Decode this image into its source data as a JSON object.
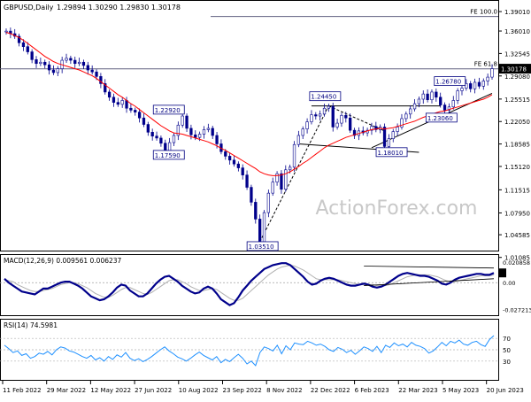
{
  "header": {
    "symbol": "GBPUSD,Daily",
    "quote": "1.29894 1.30290 1.29830 1.30178"
  },
  "watermark": "ActionForex.com",
  "colors": {
    "candle": "#00008b",
    "ma": "#ff0000",
    "macd": "#00008b",
    "signal": "#b0b0b0",
    "rsi": "#1e90ff",
    "fe_lines": "#606080"
  },
  "chart_data": [
    {
      "type": "line",
      "panel": "price",
      "ylim": [
        1.0255,
        1.4025
      ],
      "price_ticks": [
        "1.39010",
        "1.36010",
        "1.32545",
        "1.29080",
        "1.25515",
        "1.22050",
        "1.18585",
        "1.15120",
        "1.11515",
        "1.07950",
        "1.04585",
        "1.01085"
      ],
      "last_price_label": "1.30178",
      "fib_levels": [
        {
          "label": "FE 100.0",
          "price": 1.3825
        },
        {
          "label": "FE 61.8",
          "price": 1.3018
        }
      ],
      "level_labels": [
        {
          "label": "1.26780",
          "price": 1.2678
        },
        {
          "label": "1.24450",
          "price": 1.2445
        },
        {
          "label": "1.22920",
          "price": 1.2292
        },
        {
          "label": "1.23060",
          "price": 1.2306
        },
        {
          "label": "1.17590",
          "price": 1.1759
        },
        {
          "label": "1.18010",
          "price": 1.1801
        },
        {
          "label": "1.03510",
          "price": 1.0351
        }
      ],
      "series": [
        {
          "name": "",
          "role": "close",
          "values": [
            1.36,
            1.356,
            1.352,
            1.342,
            1.336,
            1.328,
            1.316,
            1.31,
            1.312,
            1.308,
            1.3,
            1.296,
            1.302,
            1.315,
            1.318,
            1.315,
            1.31,
            1.312,
            1.307,
            1.3,
            1.297,
            1.29,
            1.279,
            1.266,
            1.258,
            1.25,
            1.247,
            1.253,
            1.241,
            1.238,
            1.235,
            1.226,
            1.216,
            1.204,
            1.198,
            1.195,
            1.187,
            1.176,
            1.188,
            1.199,
            1.215,
            1.229,
            1.21,
            1.2,
            1.196,
            1.201,
            1.208,
            1.21,
            1.199,
            1.186,
            1.174,
            1.167,
            1.161,
            1.155,
            1.149,
            1.138,
            1.119,
            1.096,
            1.07,
            1.035,
            1.08,
            1.11,
            1.127,
            1.14,
            1.116,
            1.146,
            1.15,
            1.185,
            1.199,
            1.209,
            1.22,
            1.231,
            1.229,
            1.232,
            1.241,
            1.244,
            1.212,
            1.218,
            1.23,
            1.226,
            1.207,
            1.199,
            1.206,
            1.203,
            1.207,
            1.213,
            1.208,
            1.212,
            1.182,
            1.194,
            1.205,
            1.212,
            1.225,
            1.232,
            1.24,
            1.248,
            1.255,
            1.263,
            1.254,
            1.266,
            1.258,
            1.246,
            1.238,
            1.243,
            1.253,
            1.268,
            1.272,
            1.279,
            1.271,
            1.281,
            1.275,
            1.283,
            1.289,
            1.302
          ]
        },
        {
          "name": "",
          "role": "moving-average",
          "values": [
            1.358,
            1.356,
            1.353,
            1.35,
            1.346,
            1.341,
            1.336,
            1.331,
            1.326,
            1.321,
            1.317,
            1.313,
            1.31,
            1.308,
            1.306,
            1.304,
            1.302,
            1.3,
            1.297,
            1.294,
            1.291,
            1.287,
            1.282,
            1.277,
            1.272,
            1.267,
            1.262,
            1.258,
            1.253,
            1.248,
            1.244,
            1.239,
            1.234,
            1.229,
            1.224,
            1.219,
            1.214,
            1.21,
            1.206,
            1.203,
            1.202,
            1.201,
            1.199,
            1.197,
            1.195,
            1.193,
            1.191,
            1.189,
            1.186,
            1.183,
            1.179,
            1.176,
            1.172,
            1.168,
            1.164,
            1.16,
            1.156,
            1.152,
            1.148,
            1.143,
            1.14,
            1.138,
            1.137,
            1.137,
            1.138,
            1.14,
            1.143,
            1.147,
            1.151,
            1.156,
            1.16,
            1.165,
            1.17,
            1.175,
            1.18,
            1.184,
            1.187,
            1.19,
            1.193,
            1.196,
            1.198,
            1.2,
            1.202,
            1.204,
            1.206,
            1.208,
            1.209,
            1.21,
            1.209,
            1.21,
            1.211,
            1.213,
            1.215,
            1.217,
            1.219,
            1.221,
            1.224,
            1.227,
            1.229,
            1.232,
            1.234,
            1.236,
            1.237,
            1.239,
            1.241,
            1.243,
            1.245,
            1.247,
            1.249,
            1.251,
            1.253,
            1.255,
            1.258,
            1.262
          ]
        }
      ]
    },
    {
      "type": "line",
      "panel": "macd",
      "title": "MACD(12,26,9) 0.009561 0.006237",
      "ylim": [
        -0.0315,
        0.0265
      ],
      "tick_labels": [
        {
          "label": "0.020858",
          "value": 0.020858
        },
        {
          "label": "0.00",
          "value": 0.0
        },
        {
          "label": "-0.027213",
          "value": -0.027213
        }
      ],
      "series": [
        {
          "name": "",
          "role": "macd",
          "values": [
            0.004,
            0.0,
            -0.003,
            -0.006,
            -0.009,
            -0.01,
            -0.011,
            -0.012,
            -0.009,
            -0.006,
            -0.006,
            -0.004,
            -0.002,
            0.0,
            0.001,
            0.001,
            -0.001,
            -0.003,
            -0.006,
            -0.01,
            -0.014,
            -0.016,
            -0.018,
            -0.017,
            -0.014,
            -0.01,
            -0.005,
            -0.002,
            -0.003,
            -0.008,
            -0.011,
            -0.014,
            -0.014,
            -0.011,
            -0.006,
            -0.001,
            0.003,
            0.006,
            0.007,
            0.004,
            0.001,
            -0.003,
            -0.006,
            -0.009,
            -0.011,
            -0.01,
            -0.006,
            -0.004,
            -0.006,
            -0.011,
            -0.017,
            -0.02,
            -0.023,
            -0.021,
            -0.015,
            -0.008,
            -0.003,
            0.002,
            0.006,
            0.01,
            0.014,
            0.016,
            0.018,
            0.019,
            0.02,
            0.02,
            0.018,
            0.014,
            0.01,
            0.006,
            0.001,
            -0.002,
            -0.001,
            0.002,
            0.004,
            0.005,
            0.004,
            0.002,
            0.0,
            -0.002,
            -0.003,
            -0.003,
            -0.002,
            -0.001,
            -0.002,
            -0.004,
            -0.005,
            -0.004,
            -0.002,
            0.001,
            0.004,
            0.007,
            0.009,
            0.01,
            0.009,
            0.008,
            0.007,
            0.007,
            0.006,
            0.004,
            0.002,
            -0.001,
            -0.002,
            0.0,
            0.003,
            0.005,
            0.006,
            0.007,
            0.008,
            0.009,
            0.009,
            0.008,
            0.008,
            0.01
          ]
        },
        {
          "name": "",
          "role": "signal",
          "values": [
            0.003,
            0.002,
            0.001,
            -0.002,
            -0.004,
            -0.006,
            -0.008,
            -0.009,
            -0.009,
            -0.008,
            -0.007,
            -0.006,
            -0.004,
            -0.002,
            -0.001,
            0.0,
            0.0,
            -0.001,
            -0.003,
            -0.005,
            -0.008,
            -0.011,
            -0.013,
            -0.015,
            -0.015,
            -0.013,
            -0.01,
            -0.007,
            -0.005,
            -0.005,
            -0.007,
            -0.009,
            -0.011,
            -0.012,
            -0.01,
            -0.007,
            -0.004,
            -0.001,
            0.002,
            0.003,
            0.003,
            0.001,
            -0.001,
            -0.004,
            -0.006,
            -0.008,
            -0.008,
            -0.007,
            -0.006,
            -0.007,
            -0.01,
            -0.013,
            -0.016,
            -0.018,
            -0.018,
            -0.016,
            -0.012,
            -0.008,
            -0.004,
            0.0,
            0.004,
            0.008,
            0.011,
            0.014,
            0.016,
            0.017,
            0.018,
            0.017,
            0.015,
            0.013,
            0.01,
            0.007,
            0.004,
            0.003,
            0.003,
            0.003,
            0.003,
            0.003,
            0.002,
            0.001,
            0.0,
            -0.001,
            -0.002,
            -0.002,
            -0.002,
            -0.002,
            -0.003,
            -0.003,
            -0.003,
            -0.002,
            0.0,
            0.002,
            0.004,
            0.006,
            0.007,
            0.008,
            0.008,
            0.008,
            0.008,
            0.007,
            0.006,
            0.004,
            0.002,
            0.001,
            0.001,
            0.002,
            0.003,
            0.004,
            0.005,
            0.006,
            0.007,
            0.007,
            0.007,
            0.008
          ]
        }
      ]
    },
    {
      "type": "line",
      "panel": "rsi",
      "title": "RSI(14) 74.5981",
      "ylim": [
        0,
        100
      ],
      "tick_labels": [
        {
          "label": "70",
          "value": 70
        },
        {
          "label": "50",
          "value": 50
        },
        {
          "label": "30",
          "value": 30
        }
      ],
      "series": [
        {
          "name": "",
          "role": "rsi",
          "values": [
            58,
            52,
            45,
            48,
            40,
            43,
            35,
            38,
            44,
            42,
            47,
            41,
            50,
            55,
            53,
            48,
            46,
            42,
            38,
            35,
            40,
            32,
            36,
            30,
            38,
            33,
            41,
            37,
            45,
            35,
            31,
            34,
            29,
            33,
            38,
            44,
            50,
            55,
            48,
            43,
            37,
            34,
            30,
            35,
            41,
            46,
            40,
            36,
            32,
            38,
            27,
            33,
            29,
            36,
            42,
            35,
            25,
            30,
            22,
            45,
            55,
            52,
            48,
            58,
            43,
            57,
            50,
            62,
            60,
            59,
            65,
            62,
            58,
            60,
            56,
            50,
            47,
            54,
            51,
            45,
            49,
            42,
            48,
            55,
            52,
            47,
            56,
            45,
            58,
            54,
            62,
            57,
            60,
            55,
            63,
            58,
            56,
            52,
            44,
            48,
            55,
            63,
            57,
            65,
            62,
            67,
            60,
            58,
            63,
            65,
            59,
            56,
            68,
            75
          ]
        }
      ]
    },
    {
      "type": "line",
      "panel": "x-axis",
      "categories": [
        "11 Feb 2022",
        "29 Mar 2022",
        "12 May 2022",
        "27 Jun 2022",
        "10 Aug 2022",
        "23 Sep 2022",
        "8 Nov 2022",
        "22 Dec 2022",
        "6 Feb 2023",
        "22 Mar 2023",
        "5 May 2023",
        "20 Jun 2023"
      ]
    }
  ]
}
